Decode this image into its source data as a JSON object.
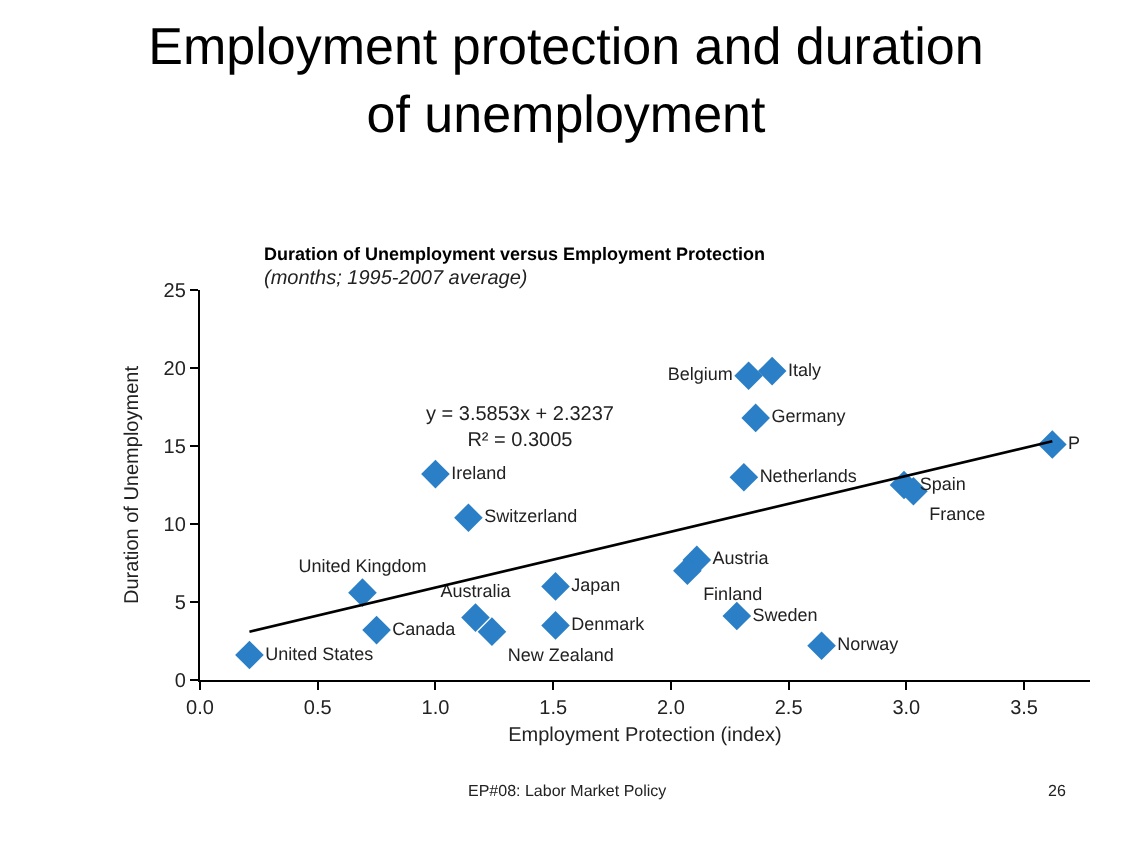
{
  "chart_data": {
    "type": "scatter",
    "title": "Employment protection and duration of unemployment",
    "subtitle": "Duration of Unemployment versus Employment Protection",
    "xlabel": "Employment Protection (index)",
    "ylabel": "Duration of Unemployment",
    "xlim": [
      0,
      3.78
    ],
    "xticks": [
      {
        "value": 0,
        "label": "0.0"
      },
      0.5,
      {
        "value": 1,
        "label": "1.0"
      },
      1.5,
      {
        "value": 2,
        "label": "2.0"
      },
      2.5,
      {
        "value": 3,
        "label": "3.0"
      },
      3.5
    ],
    "ylim": [
      0,
      25
    ],
    "yticks": [
      0,
      5,
      10,
      15,
      20,
      25
    ],
    "marker": "diamond",
    "series": [
      {
        "color": "#2a7fc6",
        "x": [
          0.21,
          0.69,
          0.75,
          1.0,
          1.14,
          1.17,
          1.24,
          1.51,
          1.51,
          2.33,
          2.43,
          2.36,
          2.31,
          2.99,
          3.03,
          3.62,
          2.11,
          2.07,
          2.28,
          2.64
        ],
        "values": [
          1.6,
          5.6,
          3.2,
          13.2,
          10.4,
          4.0,
          3.1,
          6.0,
          3.5,
          19.5,
          19.8,
          16.8,
          13.0,
          12.5,
          12.1,
          15.1,
          7.7,
          7.0,
          4.1,
          2.2
        ],
        "value_labels": [
          "United States",
          "United Kingdom",
          "Canada",
          "Ireland",
          "Switzerland",
          "Australia",
          "New Zealand",
          "Japan",
          "Denmark",
          "Belgium",
          "Italy",
          "Germany",
          "Netherlands",
          "Spain",
          "France",
          "P",
          "Austria",
          "Finland",
          "Sweden",
          "Norway"
        ]
      },
      {
        "type": "line",
        "color": "#000000",
        "marker": "none",
        "line_style": "solid",
        "x": [
          0.21,
          3.62
        ],
        "values": [
          3.1,
          15.3
        ]
      }
    ],
    "annotations": [
      "(months; 1995-2007 average)",
      "y = 3.5853x + 2.3237\nR² = 0.3005",
      "EP#08: Labor Market Policy",
      "26"
    ]
  }
}
